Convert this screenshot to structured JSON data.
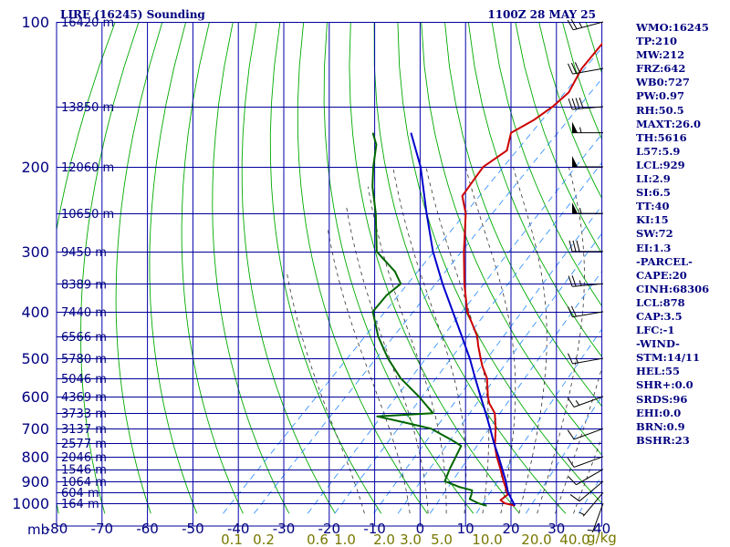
{
  "header": {
    "title": "LIRE (16245) Sounding",
    "timestamp": "1100Z 28 MAY 25"
  },
  "colors": {
    "grid": "#000099",
    "isotherm": "#0000aa",
    "dry_adiabat": "#00aa00",
    "moist_adiabat": "#333333",
    "mixing_ratio": "#2288ff",
    "temperature": "#cc0000",
    "dewpoint": "#006600",
    "parcel": "#0000cc",
    "wind": "#000000",
    "text": "#000080",
    "mixing_label": "#777700"
  },
  "chart_data": {
    "type": "line",
    "title": "LIRE (16245) Sounding",
    "pressure_unit": "mb",
    "pressure_range_mb": [
      1000,
      100
    ],
    "temperature_range_c": [
      -80,
      40
    ],
    "pressure_ticks": [
      {
        "p": 100,
        "label": "100"
      },
      {
        "p": 200,
        "label": "200"
      },
      {
        "p": 300,
        "label": "300"
      },
      {
        "p": 400,
        "label": "400"
      },
      {
        "p": 500,
        "label": "500"
      },
      {
        "p": 600,
        "label": "600"
      },
      {
        "p": 700,
        "label": "700"
      },
      {
        "p": 800,
        "label": "800"
      },
      {
        "p": 900,
        "label": "900"
      },
      {
        "p": 1000,
        "label": "1000"
      }
    ],
    "temperature_ticks": [
      "-80",
      "-70",
      "-60",
      "-50",
      "-40",
      "-30",
      "-20",
      "-10",
      "0",
      "10",
      "20",
      "30",
      "40"
    ],
    "height_labels": [
      {
        "p": 100,
        "label": "16420 m"
      },
      {
        "p": 150,
        "label": "13850 m"
      },
      {
        "p": 200,
        "label": "12060 m"
      },
      {
        "p": 250,
        "label": "10650 m"
      },
      {
        "p": 300,
        "label": "9450 m"
      },
      {
        "p": 350,
        "label": "8389 m"
      },
      {
        "p": 400,
        "label": "7440 m"
      },
      {
        "p": 450,
        "label": "6566 m"
      },
      {
        "p": 500,
        "label": "5780 m"
      },
      {
        "p": 550,
        "label": "5046 m"
      },
      {
        "p": 600,
        "label": "4369 m"
      },
      {
        "p": 650,
        "label": "3733 m"
      },
      {
        "p": 700,
        "label": "3137 m"
      },
      {
        "p": 750,
        "label": "2577 m"
      },
      {
        "p": 800,
        "label": "2046 m"
      },
      {
        "p": 850,
        "label": "1546 m"
      },
      {
        "p": 900,
        "label": "1064 m"
      },
      {
        "p": 950,
        "label": "604 m"
      },
      {
        "p": 1000,
        "label": "164 m"
      }
    ],
    "mixing_ratio_labels": [
      "0.1",
      "0.2",
      "0.6",
      "1.0",
      "2.0",
      "3.0",
      "5.0",
      "10.0",
      "20.0",
      "40.0"
    ],
    "mixing_ratio_unit": "g/kg",
    "series": [
      {
        "key": "temperature",
        "points": [
          {
            "p": 1012,
            "t": 21.4
          },
          {
            "p": 1000,
            "t": 18.6
          },
          {
            "p": 985,
            "t": 17.0
          },
          {
            "p": 960,
            "t": 17.4
          },
          {
            "p": 925,
            "t": 15.2
          },
          {
            "p": 900,
            "t": 13.5
          },
          {
            "p": 850,
            "t": 10.2
          },
          {
            "p": 800,
            "t": 6.6
          },
          {
            "p": 760,
            "t": 3.8
          },
          {
            "p": 700,
            "t": 0.2
          },
          {
            "p": 650,
            "t": -3.4
          },
          {
            "p": 620,
            "t": -6.8
          },
          {
            "p": 600,
            "t": -8.6
          },
          {
            "p": 550,
            "t": -12.8
          },
          {
            "p": 520,
            "t": -16.4
          },
          {
            "p": 500,
            "t": -18.6
          },
          {
            "p": 470,
            "t": -22.0
          },
          {
            "p": 450,
            "t": -24.2
          },
          {
            "p": 400,
            "t": -31.8
          },
          {
            "p": 350,
            "t": -38.6
          },
          {
            "p": 300,
            "t": -45.8
          },
          {
            "p": 250,
            "t": -53.8
          },
          {
            "p": 230,
            "t": -58.4
          },
          {
            "p": 210,
            "t": -59.6
          },
          {
            "p": 200,
            "t": -60.2
          },
          {
            "p": 185,
            "t": -58.6
          },
          {
            "p": 170,
            "t": -61.6
          },
          {
            "p": 160,
            "t": -59.4
          },
          {
            "p": 150,
            "t": -58.2
          },
          {
            "p": 140,
            "t": -57.8
          },
          {
            "p": 125,
            "t": -60.2
          },
          {
            "p": 100,
            "t": -62.0
          }
        ]
      },
      {
        "key": "dewpoint",
        "points": [
          {
            "p": 1012,
            "t": 15.2
          },
          {
            "p": 1000,
            "t": 12.8
          },
          {
            "p": 980,
            "t": 10.0
          },
          {
            "p": 960,
            "t": 9.4
          },
          {
            "p": 940,
            "t": 8.6
          },
          {
            "p": 925,
            "t": 5.0
          },
          {
            "p": 900,
            "t": 0.6
          },
          {
            "p": 850,
            "t": -1.0
          },
          {
            "p": 800,
            "t": -2.4
          },
          {
            "p": 760,
            "t": -3.6
          },
          {
            "p": 740,
            "t": -6.8
          },
          {
            "p": 700,
            "t": -14.0
          },
          {
            "p": 680,
            "t": -21.0
          },
          {
            "p": 660,
            "t": -28.6
          },
          {
            "p": 650,
            "t": -17.0
          },
          {
            "p": 600,
            "t": -23.8
          },
          {
            "p": 550,
            "t": -31.8
          },
          {
            "p": 500,
            "t": -39.0
          },
          {
            "p": 450,
            "t": -46.0
          },
          {
            "p": 400,
            "t": -52.6
          },
          {
            "p": 370,
            "t": -53.2
          },
          {
            "p": 350,
            "t": -52.6
          },
          {
            "p": 330,
            "t": -56.6
          },
          {
            "p": 300,
            "t": -65.0
          },
          {
            "p": 250,
            "t": -73.6
          },
          {
            "p": 220,
            "t": -80.2
          },
          {
            "p": 200,
            "t": -84.4
          },
          {
            "p": 180,
            "t": -88.6
          },
          {
            "p": 170,
            "t": -92.0
          }
        ]
      },
      {
        "key": "parcel",
        "points": [
          {
            "p": 1012,
            "t": 21.4
          },
          {
            "p": 950,
            "t": 17.0
          },
          {
            "p": 900,
            "t": 14.0
          },
          {
            "p": 850,
            "t": 10.6
          },
          {
            "p": 800,
            "t": 7.0
          },
          {
            "p": 750,
            "t": 3.0
          },
          {
            "p": 700,
            "t": -1.0
          },
          {
            "p": 650,
            "t": -5.4
          },
          {
            "p": 600,
            "t": -10.2
          },
          {
            "p": 550,
            "t": -15.4
          },
          {
            "p": 500,
            "t": -21.0
          },
          {
            "p": 450,
            "t": -27.6
          },
          {
            "p": 400,
            "t": -35.0
          },
          {
            "p": 350,
            "t": -43.4
          },
          {
            "p": 300,
            "t": -52.6
          },
          {
            "p": 250,
            "t": -62.4
          },
          {
            "p": 200,
            "t": -74.0
          },
          {
            "p": 170,
            "t": -83.6
          }
        ]
      }
    ],
    "wind_barbs": [
      {
        "p": 1000,
        "dir": 200,
        "kt": 5
      },
      {
        "p": 950,
        "dir": 220,
        "kt": 5
      },
      {
        "p": 900,
        "dir": 230,
        "kt": 10
      },
      {
        "p": 850,
        "dir": 240,
        "kt": 10
      },
      {
        "p": 800,
        "dir": 250,
        "kt": 10
      },
      {
        "p": 700,
        "dir": 250,
        "kt": 10
      },
      {
        "p": 600,
        "dir": 250,
        "kt": 15
      },
      {
        "p": 500,
        "dir": 260,
        "kt": 15
      },
      {
        "p": 400,
        "dir": 260,
        "kt": 20
      },
      {
        "p": 350,
        "dir": 265,
        "kt": 25
      },
      {
        "p": 300,
        "dir": 270,
        "kt": 30
      },
      {
        "p": 250,
        "dir": 270,
        "kt": 55
      },
      {
        "p": 200,
        "dir": 270,
        "kt": 50
      },
      {
        "p": 170,
        "dir": 270,
        "kt": 55
      },
      {
        "p": 150,
        "dir": 265,
        "kt": 40
      },
      {
        "p": 125,
        "dir": 260,
        "kt": 30
      },
      {
        "p": 100,
        "dir": 255,
        "kt": 25
      }
    ]
  },
  "indices": [
    "WMO:16245",
    "TP:210",
    "MW:212",
    "FRZ:642",
    "WB0:727",
    "PW:0.97",
    "RH:50.5",
    "MAXT:26.0",
    "TH:5616",
    "L57:5.9",
    "LCL:929",
    "LI:2.9",
    "SI:6.5",
    "TT:40",
    "KI:15",
    "SW:72",
    "EI:1.3",
    "-PARCEL-",
    "CAPE:20",
    "CINH:68306",
    "LCL:878",
    "CAP:3.5",
    "LFC:-1",
    "-WIND-",
    "STM:14/11",
    "HEL:55",
    "SHR+:0.0",
    "SRDS:96",
    "EHI:0.0",
    "BRN:0.9",
    "BSHR:23"
  ]
}
